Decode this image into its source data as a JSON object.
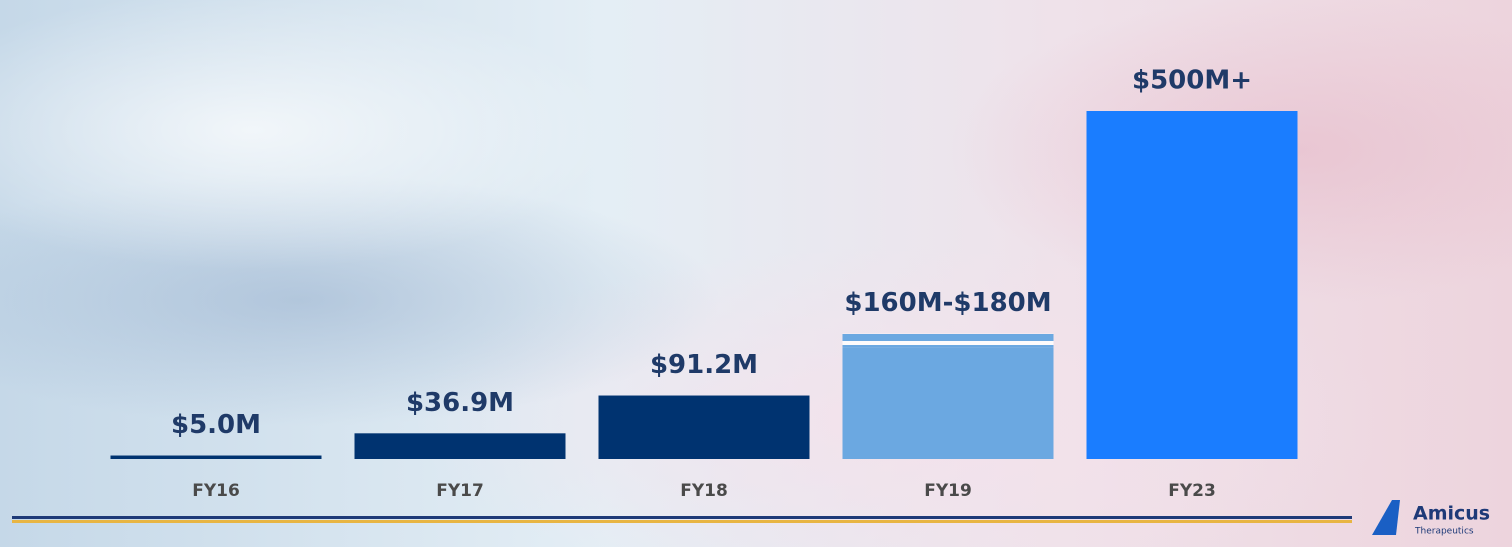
{
  "chart_data": {
    "type": "bar",
    "categories": [
      "FY16",
      "FY17",
      "FY18",
      "FY19",
      "FY23"
    ],
    "values": [
      5,
      36.9,
      91.2,
      160,
      500
    ],
    "range_max": [
      null,
      null,
      null,
      180,
      null
    ],
    "value_labels": [
      "$5.0M",
      "$36.9M",
      "$91.2M",
      "$160M-$180M",
      "$500M+"
    ],
    "colors": [
      "#003370",
      "#003370",
      "#003370",
      "#6ba8e1",
      "#1a7dff"
    ],
    "ylim": [
      0,
      500
    ]
  },
  "logo": {
    "name": "Amicus",
    "tagline": "Therapeutics"
  }
}
